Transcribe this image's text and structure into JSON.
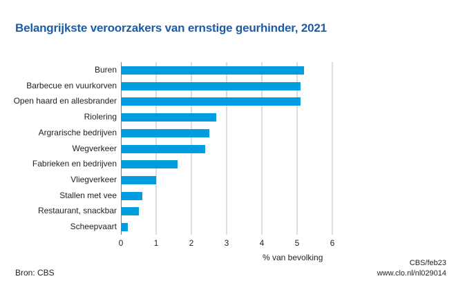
{
  "header": {
    "title": "Belangrijkste veroorzakers van ernstige geurhinder, 2021"
  },
  "footer": {
    "source": "Bron: CBS",
    "credit_line1": "CBS/feb23",
    "credit_line2": "www.clo.nl/nl029014"
  },
  "colors": {
    "bar": "#009de0",
    "title": "#1a5ca8",
    "grid": "#dcdcdc"
  },
  "chart_data": {
    "type": "bar",
    "orientation": "horizontal",
    "title": "Belangrijkste veroorzakers van ernstige geurhinder, 2021",
    "xlabel": "% van bevolking",
    "ylabel": "",
    "xlim": [
      0,
      6
    ],
    "xticks": [
      "0",
      "1",
      "2",
      "3",
      "4",
      "5",
      "6"
    ],
    "grid": true,
    "legend": null,
    "categories": [
      "Buren",
      "Barbecue en vuurkorven",
      "Open haard en allesbrander",
      "Riolering",
      "Argrarische bedrijven",
      "Wegverkeer",
      "Fabrieken en bedrijven",
      "Vliegverkeer",
      "Stallen met vee",
      "Restaurant, snackbar",
      "Scheepvaart"
    ],
    "values": [
      5.2,
      5.1,
      5.1,
      2.7,
      2.5,
      2.4,
      1.6,
      1.0,
      0.6,
      0.5,
      0.2
    ]
  }
}
